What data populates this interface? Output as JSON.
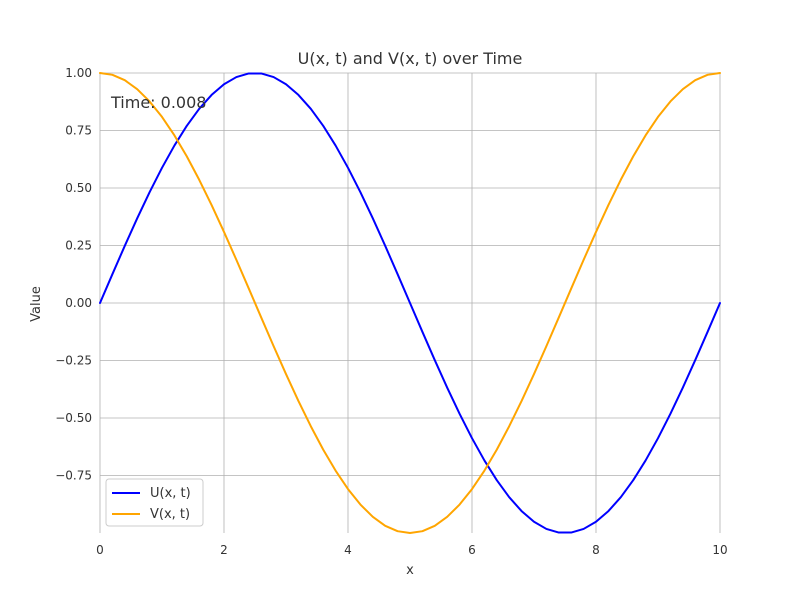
{
  "chart_data": {
    "type": "line",
    "title": "U(x, t) and V(x, t) over Time",
    "xlabel": "x",
    "ylabel": "Value",
    "xlim": [
      0,
      10
    ],
    "ylim": [
      -1,
      1
    ],
    "xticks": [
      0,
      2,
      4,
      6,
      8,
      10
    ],
    "xtick_labels": [
      "0",
      "2",
      "4",
      "6",
      "8",
      "10"
    ],
    "yticks": [
      1.0,
      0.75,
      0.5,
      0.25,
      0.0,
      -0.25,
      -0.5,
      -0.75
    ],
    "ytick_labels": [
      "1.00",
      "0.75",
      "0.50",
      "0.25",
      "0.00",
      "−0.25",
      "−0.50",
      "−0.75"
    ],
    "grid": true,
    "legend_position": "lower-left",
    "annotation": "Time: 0.008",
    "x": [
      0,
      0.2,
      0.4,
      0.6,
      0.8,
      1.0,
      1.2,
      1.4,
      1.6,
      1.8,
      2.0,
      2.2,
      2.4,
      2.6,
      2.8,
      3.0,
      3.2,
      3.4,
      3.6,
      3.8,
      4.0,
      4.2,
      4.4,
      4.6,
      4.8,
      5.0,
      5.2,
      5.4,
      5.6,
      5.8,
      6.0,
      6.2,
      6.4,
      6.6,
      6.8,
      7.0,
      7.2,
      7.4,
      7.6,
      7.8,
      8.0,
      8.2,
      8.4,
      8.6,
      8.8,
      9.0,
      9.2,
      9.4,
      9.6,
      9.8,
      10.0
    ],
    "series": [
      {
        "name": "U(x, t)",
        "color": "#0000ff",
        "values": [
          0.0,
          0.1253,
          0.2487,
          0.3681,
          0.4818,
          0.5878,
          0.6845,
          0.7705,
          0.8443,
          0.9048,
          0.9511,
          0.9823,
          0.998,
          0.998,
          0.9823,
          0.9511,
          0.9048,
          0.8443,
          0.7705,
          0.6845,
          0.5878,
          0.4818,
          0.3681,
          0.2487,
          0.1253,
          0.0,
          -0.1253,
          -0.2487,
          -0.3681,
          -0.4818,
          -0.5878,
          -0.6845,
          -0.7705,
          -0.8443,
          -0.9048,
          -0.9511,
          -0.9823,
          -0.998,
          -0.998,
          -0.9823,
          -0.9511,
          -0.9048,
          -0.8443,
          -0.7705,
          -0.6845,
          -0.5878,
          -0.4818,
          -0.3681,
          -0.2487,
          -0.1253,
          0.0
        ]
      },
      {
        "name": "V(x, t)",
        "color": "#ffa500",
        "values": [
          1.0,
          0.9921,
          0.9686,
          0.9298,
          0.8763,
          0.809,
          0.729,
          0.6374,
          0.5358,
          0.4258,
          0.309,
          0.1874,
          0.0628,
          -0.0628,
          -0.1874,
          -0.309,
          -0.4258,
          -0.5358,
          -0.6374,
          -0.729,
          -0.809,
          -0.8763,
          -0.9298,
          -0.9686,
          -0.9921,
          -1.0,
          -0.9921,
          -0.9686,
          -0.9298,
          -0.8763,
          -0.809,
          -0.729,
          -0.6374,
          -0.5358,
          -0.4258,
          -0.309,
          -0.1874,
          -0.0628,
          0.0628,
          0.1874,
          0.309,
          0.4258,
          0.5358,
          0.6374,
          0.729,
          0.809,
          0.8763,
          0.9298,
          0.9686,
          0.9921,
          1.0
        ]
      }
    ]
  }
}
